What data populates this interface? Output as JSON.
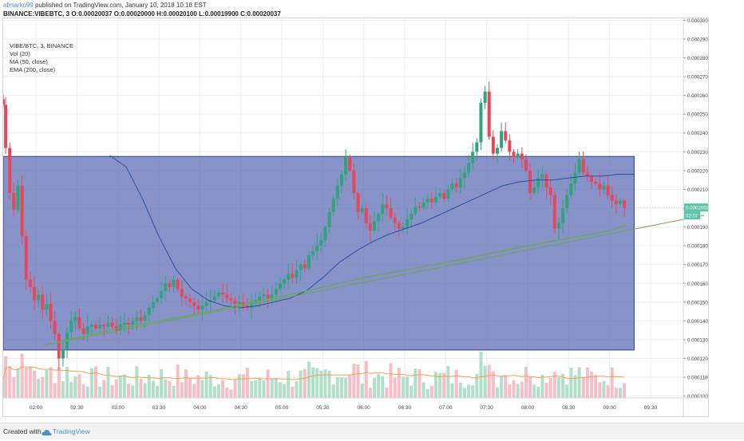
{
  "header": {
    "user": "afmarko99",
    "published_text": " published on TradingView.com, January 10, 2018 10:18 EST",
    "symbol_line_prefix": "BINANCE:VIBEBTC, 3",
    "ohlc": "O:0.00020037 O:0.00020000 H:0.00020100 L:0.00019900 C:0.00020037"
  },
  "legend": {
    "symbol": "VIBE/BTC, 3, BINANCE",
    "vol": "Vol (20)",
    "ma": "MA (50, close)",
    "ema": "EMA (200, close)"
  },
  "footer": {
    "created_with": "Created with",
    "brand": "TradingView"
  },
  "colors": {
    "up": "#2fa37c",
    "down": "#e8465a",
    "box_fill": "#3f52a8",
    "ma_line": "#2a4ea3",
    "ema_line": "#6aa84f",
    "vol_ma": "#f0a050",
    "price_badge_bg": "#5ac4a5"
  },
  "chart_data": {
    "type": "candlestick",
    "symbol": "VIBE/BTC",
    "interval": "3",
    "exchange": "BINANCE",
    "y_axis": {
      "range": [
        9.9e-05,
        0.000301
      ],
      "ticks": [
        "0.00030000",
        "0.00029000",
        "0.00028000",
        "0.00027000",
        "0.00026000",
        "0.00025000",
        "0.00024000",
        "0.00023000",
        "0.00022000",
        "0.00021000",
        "0.00020000",
        "0.00019000",
        "0.00018000",
        "0.00017000",
        "0.00016000",
        "0.00015000",
        "0.00014000",
        "0.00013000",
        "0.00012000",
        "0.00011000",
        "0.00010000"
      ],
      "tick_values": [
        0.0003,
        0.00029,
        0.00028,
        0.00027,
        0.00026,
        0.00025,
        0.00024,
        0.00023,
        0.00022,
        0.00021,
        0.0002,
        0.00019,
        0.00018,
        0.00017,
        0.00016,
        0.00015,
        0.00014,
        0.00013,
        0.00012,
        0.00011,
        0.0001
      ]
    },
    "x_axis": {
      "ticks": [
        "02:00",
        "02:30",
        "03:00",
        "03:30",
        "04:00",
        "04:30",
        "05:00",
        "05:30",
        "06:00",
        "06:30",
        "07:00",
        "07:30",
        "08:00",
        "08:30",
        "09:00",
        "09:30"
      ],
      "tick_hours": [
        2.0,
        2.5,
        3.0,
        3.5,
        4.0,
        4.5,
        5.0,
        5.5,
        6.0,
        6.5,
        7.0,
        7.5,
        8.0,
        8.5,
        9.0,
        9.5
      ],
      "range_hours": [
        1.6,
        9.9
      ]
    },
    "last_price": {
      "label": "0.00020037",
      "value": 0.00020037
    },
    "countdown": "02:57",
    "box_zone": {
      "from": 1.6,
      "to": 9.3,
      "top": 0.0002275,
      "bottom": 0.0001245
    },
    "close_path": [
      [
        1.6,
        0.000255
      ],
      [
        1.63,
        0.000232
      ],
      [
        1.68,
        0.000208
      ],
      [
        1.73,
        0.000199
      ],
      [
        1.78,
        0.000212
      ],
      [
        1.83,
        0.000185
      ],
      [
        1.88,
        0.000162
      ],
      [
        1.93,
        0.000158
      ],
      [
        1.98,
        0.000151
      ],
      [
        2.03,
        0.000154
      ],
      [
        2.08,
        0.000146
      ],
      [
        2.13,
        0.000149
      ],
      [
        2.18,
        0.00014
      ],
      [
        2.23,
        0.000133
      ],
      [
        2.28,
        0.00012
      ],
      [
        2.33,
        0.000125
      ],
      [
        2.38,
        0.000134
      ],
      [
        2.43,
        0.00014
      ],
      [
        2.48,
        0.000142
      ],
      [
        2.53,
        0.000136
      ],
      [
        2.58,
        0.000133
      ],
      [
        2.63,
        0.000137
      ],
      [
        2.68,
        0.000138
      ],
      [
        2.73,
        0.000136
      ],
      [
        2.78,
        0.000138
      ],
      [
        2.83,
        0.000137
      ],
      [
        2.88,
        0.000139
      ],
      [
        2.93,
        0.000137
      ],
      [
        2.98,
        0.000135
      ],
      [
        3.03,
        0.000138
      ],
      [
        3.08,
        0.000139
      ],
      [
        3.13,
        0.000138
      ],
      [
        3.18,
        0.00014
      ],
      [
        3.23,
        0.000142
      ],
      [
        3.28,
        0.00014
      ],
      [
        3.33,
        0.000143
      ],
      [
        3.38,
        0.000147
      ],
      [
        3.43,
        0.00015
      ],
      [
        3.48,
        0.000152
      ],
      [
        3.53,
        0.000156
      ],
      [
        3.58,
        0.00016
      ],
      [
        3.63,
        0.000158
      ],
      [
        3.68,
        0.000162
      ],
      [
        3.73,
        0.000157
      ],
      [
        3.78,
        0.000153
      ],
      [
        3.83,
        0.000152
      ],
      [
        3.88,
        0.00015
      ],
      [
        3.93,
        0.000148
      ],
      [
        3.98,
        0.000146
      ],
      [
        4.03,
        0.000148
      ],
      [
        4.08,
        0.00015
      ],
      [
        4.13,
        0.000151
      ],
      [
        4.18,
        0.000153
      ],
      [
        4.23,
        0.000155
      ],
      [
        4.28,
        0.000154
      ],
      [
        4.33,
        0.000152
      ],
      [
        4.38,
        0.000151
      ],
      [
        4.43,
        0.000149
      ],
      [
        4.48,
        0.00015
      ],
      [
        4.53,
        0.000148
      ],
      [
        4.58,
        0.000147
      ],
      [
        4.63,
        0.00015
      ],
      [
        4.68,
        0.000151
      ],
      [
        4.73,
        0.000153
      ],
      [
        4.78,
        0.000154
      ],
      [
        4.83,
        0.000152
      ],
      [
        4.88,
        0.000154
      ],
      [
        4.93,
        0.000157
      ],
      [
        4.98,
        0.00016
      ],
      [
        5.03,
        0.000162
      ],
      [
        5.08,
        0.000165
      ],
      [
        5.13,
        0.000163
      ],
      [
        5.18,
        0.000167
      ],
      [
        5.23,
        0.00017
      ],
      [
        5.28,
        0.000168
      ],
      [
        5.33,
        0.000175
      ],
      [
        5.38,
        0.000177
      ],
      [
        5.43,
        0.00018
      ],
      [
        5.48,
        0.000183
      ],
      [
        5.53,
        0.00019
      ],
      [
        5.58,
        0.000198
      ],
      [
        5.63,
        0.000205
      ],
      [
        5.68,
        0.000212
      ],
      [
        5.73,
        0.000218
      ],
      [
        5.78,
        0.000227
      ],
      [
        5.83,
        0.00022
      ],
      [
        5.88,
        0.000208
      ],
      [
        5.93,
        0.000198
      ],
      [
        5.98,
        0.0002
      ],
      [
        6.03,
        0.000192
      ],
      [
        6.08,
        0.000188
      ],
      [
        6.13,
        0.000193
      ],
      [
        6.18,
        0.000197
      ],
      [
        6.23,
        0.000202
      ],
      [
        6.28,
        0.0002
      ],
      [
        6.33,
        0.000195
      ],
      [
        6.38,
        0.000192
      ],
      [
        6.43,
        0.000189
      ],
      [
        6.48,
        0.00019
      ],
      [
        6.53,
        0.000194
      ],
      [
        6.58,
        0.000197
      ],
      [
        6.63,
        0.000201
      ],
      [
        6.68,
        0.0002
      ],
      [
        6.73,
        0.000203
      ],
      [
        6.78,
        0.000205
      ],
      [
        6.83,
        0.000203
      ],
      [
        6.88,
        0.000206
      ],
      [
        6.93,
        0.000208
      ],
      [
        6.98,
        0.000205
      ],
      [
        7.03,
        0.00021
      ],
      [
        7.08,
        0.000213
      ],
      [
        7.13,
        0.000211
      ],
      [
        7.18,
        0.000216
      ],
      [
        7.23,
        0.000219
      ],
      [
        7.28,
        0.000224
      ],
      [
        7.33,
        0.00023
      ],
      [
        7.38,
        0.000235
      ],
      [
        7.43,
        0.000256
      ],
      [
        7.48,
        0.000262
      ],
      [
        7.53,
        0.000238
      ],
      [
        7.58,
        0.000229
      ],
      [
        7.63,
        0.000232
      ],
      [
        7.68,
        0.000241
      ],
      [
        7.73,
        0.000236
      ],
      [
        7.78,
        0.00023
      ],
      [
        7.83,
        0.000227
      ],
      [
        7.88,
        0.000229
      ],
      [
        7.93,
        0.000226
      ],
      [
        7.98,
        0.00022
      ],
      [
        8.03,
        0.000208
      ],
      [
        8.08,
        0.000211
      ],
      [
        8.13,
        0.000216
      ],
      [
        8.18,
        0.000218
      ],
      [
        8.23,
        0.000211
      ],
      [
        8.28,
        0.000207
      ],
      [
        8.33,
        0.000189
      ],
      [
        8.38,
        0.000192
      ],
      [
        8.43,
        0.0002
      ],
      [
        8.48,
        0.000207
      ],
      [
        8.53,
        0.000213
      ],
      [
        8.58,
        0.000219
      ],
      [
        8.63,
        0.000226
      ],
      [
        8.68,
        0.000219
      ],
      [
        8.73,
        0.000217
      ],
      [
        8.78,
        0.000214
      ],
      [
        8.83,
        0.000213
      ],
      [
        8.88,
        0.00021
      ],
      [
        8.93,
        0.000212
      ],
      [
        8.98,
        0.000207
      ],
      [
        9.03,
        0.000204
      ],
      [
        9.08,
        0.000202
      ],
      [
        9.13,
        0.000204
      ],
      [
        9.18,
        0.0002
      ]
    ],
    "ma_50": [
      [
        2.9,
        0.000228
      ],
      [
        3.1,
        0.000222
      ],
      [
        3.3,
        0.000205
      ],
      [
        3.5,
        0.000185
      ],
      [
        3.7,
        0.000168
      ],
      [
        3.9,
        0.000157
      ],
      [
        4.1,
        0.000151
      ],
      [
        4.3,
        0.000148
      ],
      [
        4.5,
        0.000147
      ],
      [
        4.7,
        0.000148
      ],
      [
        4.9,
        0.00015
      ],
      [
        5.1,
        0.000152
      ],
      [
        5.3,
        0.000156
      ],
      [
        5.5,
        0.000163
      ],
      [
        5.7,
        0.000171
      ],
      [
        5.9,
        0.000177
      ],
      [
        6.1,
        0.000182
      ],
      [
        6.3,
        0.000186
      ],
      [
        6.5,
        0.000189
      ],
      [
        6.7,
        0.000192
      ],
      [
        6.9,
        0.000196
      ],
      [
        7.1,
        0.0002
      ],
      [
        7.3,
        0.000204
      ],
      [
        7.5,
        0.000208
      ],
      [
        7.7,
        0.000212
      ],
      [
        7.9,
        0.000214
      ],
      [
        8.1,
        0.000215
      ],
      [
        8.3,
        0.000215
      ],
      [
        8.5,
        0.000216
      ],
      [
        8.7,
        0.000217
      ],
      [
        8.9,
        0.000217
      ],
      [
        9.1,
        0.000218
      ],
      [
        9.3,
        0.000218
      ]
    ],
    "ema_200": [
      [
        2.1,
        0.000127
      ],
      [
        3.0,
        0.000136
      ],
      [
        4.0,
        0.000144
      ],
      [
        5.0,
        0.000153
      ],
      [
        6.0,
        0.000163
      ],
      [
        7.0,
        0.000171
      ],
      [
        8.0,
        0.00018
      ],
      [
        8.5,
        0.000184
      ],
      [
        9.0,
        0.000188
      ],
      [
        9.2,
        0.000191
      ]
    ],
    "volume_axis_max": 0.000136
  }
}
